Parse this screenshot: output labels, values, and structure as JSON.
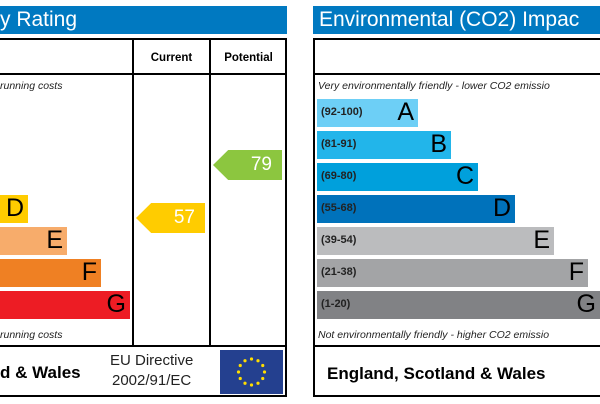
{
  "chart_data": [
    {
      "type": "bar",
      "title": "y Rating",
      "columns": [
        "Current",
        "Potential"
      ],
      "top_note": "running costs",
      "bottom_note": "running costs",
      "bands": [
        {
          "letter": "D",
          "color": "#ffcc00"
        },
        {
          "letter": "E",
          "color": "#f7ac6b"
        },
        {
          "letter": "F",
          "color": "#ef8023"
        },
        {
          "letter": "G",
          "color": "#ed1c24"
        }
      ],
      "current": {
        "value": "57",
        "band": "D",
        "color": "#ffcc00"
      },
      "potential": {
        "value": "79",
        "band": "C",
        "color": "#8cc63f"
      },
      "footer": "d & Wales",
      "directive_line1": "EU Directive",
      "directive_line2": "2002/91/EC"
    },
    {
      "type": "bar",
      "title": "Environmental (CO2) Impac",
      "top_note": "Very environmentally friendly - lower CO2 emissio",
      "bottom_note": "Not environmentally friendly - higher CO2 emissio",
      "bands": [
        {
          "range": "(92-100)",
          "letter": "A",
          "color": "#6dcff6"
        },
        {
          "range": "(81-91)",
          "letter": "B",
          "color": "#22b5ea"
        },
        {
          "range": "(69-80)",
          "letter": "C",
          "color": "#00a0dc"
        },
        {
          "range": "(55-68)",
          "letter": "D",
          "color": "#0072bb"
        },
        {
          "range": "(39-54)",
          "letter": "E",
          "color": "#bbbcbe"
        },
        {
          "range": "(21-38)",
          "letter": "F",
          "color": "#a3a4a6"
        },
        {
          "range": "(1-20)",
          "letter": "G",
          "color": "#818285"
        }
      ],
      "footer": "England, Scotland & Wales"
    }
  ]
}
